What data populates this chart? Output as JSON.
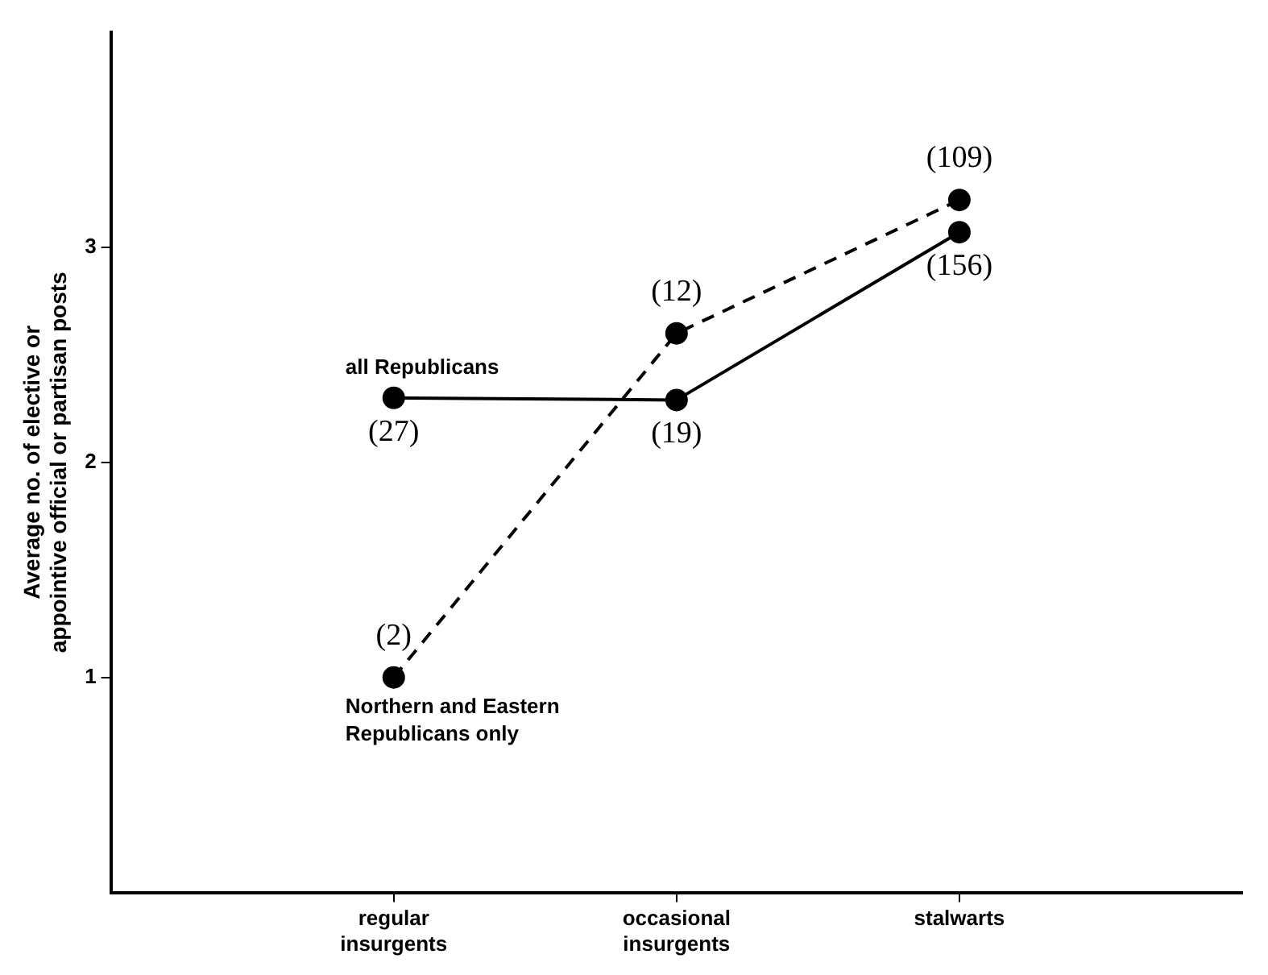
{
  "chart_data": {
    "type": "line",
    "ylabel": "Average no. of elective or appointive official or partisan posts",
    "categories": [
      "regular insurgents",
      "occasional insurgents",
      "stalwarts"
    ],
    "series": [
      {
        "name": "all Republicans",
        "color": "#000000",
        "line_style": "solid",
        "values": [
          2.3,
          2.29,
          3.07
        ]
      },
      {
        "name": "Northern and Eastern Republicans only",
        "color": "#000000",
        "line_style": "dashed",
        "values": [
          1.0,
          2.6,
          3.22
        ]
      }
    ],
    "annotations": [
      {
        "text": "(27)",
        "x": "regular insurgents",
        "y": 2.3
      },
      {
        "text": "(19)",
        "x": "occasional insurgents",
        "y": 2.29
      },
      {
        "text": "(156)",
        "x": "stalwarts",
        "y": 3.07
      },
      {
        "text": "(2)",
        "x": "regular insurgents",
        "y": 1.0
      },
      {
        "text": "(12)",
        "x": "occasional insurgents",
        "y": 2.6
      },
      {
        "text": "(109)",
        "x": "stalwarts",
        "y": 3.22
      }
    ],
    "ylim": [
      0,
      4
    ],
    "yticks": [
      1,
      2,
      3
    ],
    "grid": false,
    "legend": false,
    "marker": "circle"
  }
}
